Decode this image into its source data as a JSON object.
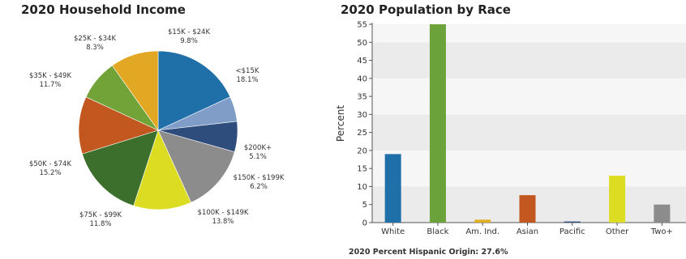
{
  "chart_data": [
    {
      "type": "pie",
      "title": "2020 Household Income",
      "slices": [
        {
          "label": "<$15K",
          "value": 18.1,
          "display": "18.1%",
          "color": "#1f6fa8"
        },
        {
          "label": "$200K+",
          "value": 5.1,
          "display": "5.1%",
          "color": "#7f9dc7"
        },
        {
          "label": "$150K - $199K",
          "value": 6.2,
          "display": "6.2%",
          "color": "#2f4d7c"
        },
        {
          "label": "$100K - $149K",
          "value": 13.8,
          "display": "13.8%",
          "color": "#8c8c8c"
        },
        {
          "label": "$75K - $99K",
          "value": 11.8,
          "display": "11.8%",
          "color": "#dcdc22"
        },
        {
          "label": "$50K - $74K",
          "value": 15.2,
          "display": "15.2%",
          "color": "#3c6e2c"
        },
        {
          "label": "$35K - $49K",
          "value": 11.7,
          "display": "11.7%",
          "color": "#c2581f"
        },
        {
          "label": "$25K - $34K",
          "value": 8.3,
          "display": "8.3%",
          "color": "#72a339"
        },
        {
          "label": "$15K - $24K",
          "value": 9.8,
          "display": "9.8%",
          "color": "#e3a823"
        }
      ]
    },
    {
      "type": "bar",
      "title": "2020 Population by Race",
      "categories": [
        "White",
        "Black",
        "Am. Ind.",
        "Asian",
        "Pacific",
        "Other",
        "Two+"
      ],
      "values": [
        19,
        55,
        0.8,
        7.6,
        0.3,
        13,
        5
      ],
      "colors": [
        "#1f6fa8",
        "#6ba33a",
        "#e0b020",
        "#c2581f",
        "#2f4d7c",
        "#dcdc22",
        "#8c8c8c"
      ],
      "ylabel": "Percent",
      "ylim": [
        0,
        55
      ],
      "yticks": [
        0,
        5,
        10,
        15,
        20,
        25,
        30,
        35,
        40,
        45,
        50,
        55
      ],
      "grid": "alternating bands",
      "band_colors": [
        "#ebebeb",
        "#f6f6f6"
      ]
    }
  ],
  "footnote": "2020 Percent Hispanic Origin: 27.6%"
}
